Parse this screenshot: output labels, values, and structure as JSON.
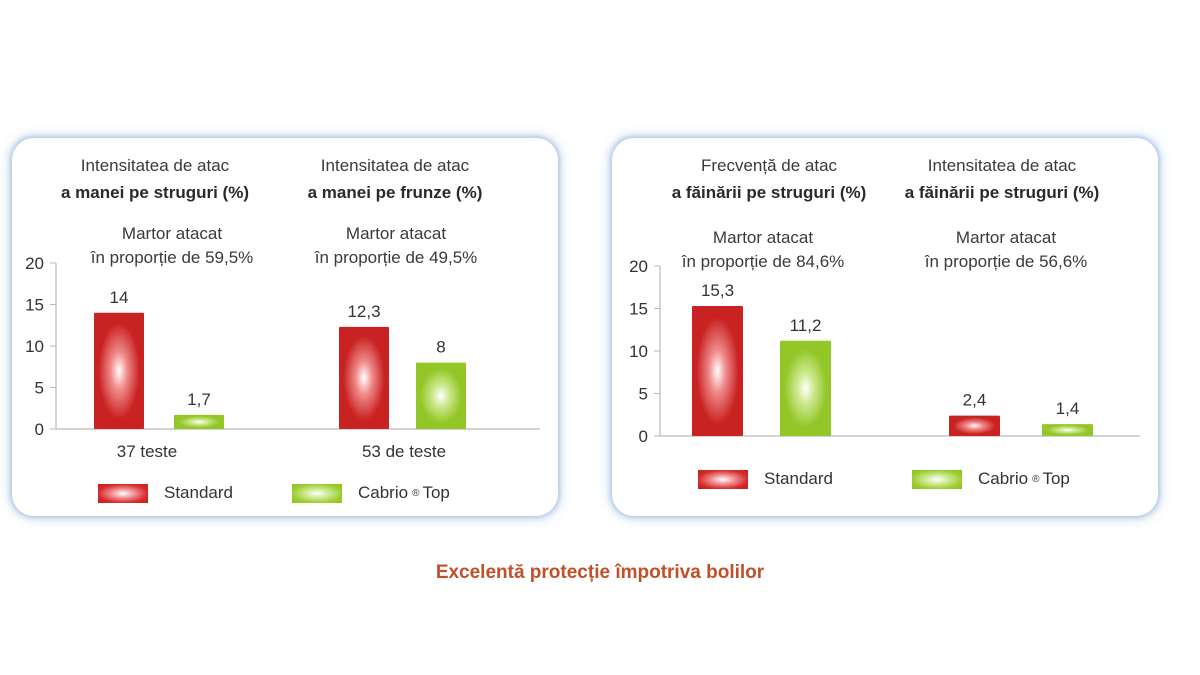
{
  "footer_title": "Excelentă protecție împotriva bolilor",
  "legend": {
    "standard": "Standard",
    "cabrio_name": "Cabrio",
    "cabrio_mark": "®",
    "cabrio_suffix": "Top"
  },
  "colors": {
    "standard": "#d42a2a",
    "cabrio_top": "#9ccd30",
    "axis": "#b9b9b9",
    "footer": "#c0502a",
    "panel_glow": "#8caad7"
  },
  "left_panel": {
    "groups": [
      {
        "title_line1": "Intensitatea de atac",
        "title_line2": "a manei pe struguri (%)",
        "sub_line1": "Martor atacat",
        "sub_line2": "în proporție de 59,5%",
        "tests": "37 teste"
      },
      {
        "title_line1": "Intensitatea de atac",
        "title_line2": "a manei pe frunze (%)",
        "sub_line1": "Martor atacat",
        "sub_line2": "în proporție de 49,5%",
        "tests": "53 de teste"
      }
    ]
  },
  "right_panel": {
    "groups": [
      {
        "title_line1": "Frecvență de atac",
        "title_line2": "a făinării pe struguri (%)",
        "sub_line1": "Martor atacat",
        "sub_line2": "în proporție de 84,6%"
      },
      {
        "title_line1": "Intensitatea de atac",
        "title_line2": "a făinării pe struguri (%)",
        "sub_line1": "Martor atacat",
        "sub_line2": "în proporție de 56,6%"
      }
    ]
  },
  "chart_data": [
    {
      "type": "bar",
      "categories": [
        "a manei pe struguri (%)",
        "a manei pe frunze (%)"
      ],
      "series": [
        {
          "name": "Standard",
          "values": [
            14,
            12.3
          ],
          "labels": [
            "14",
            "12,3"
          ]
        },
        {
          "name": "Cabrio ® Top",
          "values": [
            1.7,
            8
          ],
          "labels": [
            "1,7",
            "8"
          ]
        }
      ],
      "ylim": [
        0,
        20
      ],
      "yticks": [
        "0",
        "5",
        "10",
        "15",
        "20"
      ],
      "legend": "bottom"
    },
    {
      "type": "bar",
      "categories": [
        "a făinării pe struguri (%) — frecvență",
        "a făinării pe struguri (%) — intensitate"
      ],
      "series": [
        {
          "name": "Standard",
          "values": [
            15.3,
            2.4
          ],
          "labels": [
            "15,3",
            "2,4"
          ]
        },
        {
          "name": "Cabrio ® Top",
          "values": [
            11.2,
            1.4
          ],
          "labels": [
            "11,2",
            "1,4"
          ]
        }
      ],
      "ylim": [
        0,
        20
      ],
      "yticks": [
        "0",
        "5",
        "10",
        "15",
        "20"
      ],
      "legend": "bottom"
    }
  ]
}
